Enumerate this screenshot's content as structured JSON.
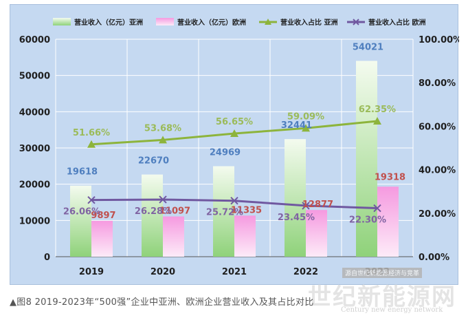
{
  "chart_data": {
    "type": "bar",
    "categories": [
      "2019",
      "2020",
      "2021",
      "2022",
      "2023"
    ],
    "series": [
      {
        "name": "营业收入（亿元）亚洲",
        "kind": "bar",
        "axis": "left",
        "values": [
          19618,
          22670,
          24969,
          32441,
          54021
        ],
        "labels": [
          "19618",
          "22670",
          "24969",
          "32441",
          "54021"
        ],
        "color": "#8fd27a",
        "label_color": "#4f7fbf"
      },
      {
        "name": "营业收入（亿元）欧洲",
        "kind": "bar",
        "axis": "left",
        "values": [
          9897,
          11097,
          11335,
          12877,
          19318
        ],
        "labels": [
          "9897",
          "11097",
          "11335",
          "12877",
          "19318"
        ],
        "color": "#f59ae0",
        "label_color": "#c0504d"
      },
      {
        "name": "营业收入占比 亚洲",
        "kind": "line",
        "axis": "right",
        "values": [
          51.66,
          53.68,
          56.65,
          59.09,
          62.35
        ],
        "labels": [
          "51.66%",
          "53.68%",
          "56.65%",
          "59.09%",
          "62.35%"
        ],
        "color": "#8db43c",
        "label_color": "#9bbb59",
        "marker": "triangle"
      },
      {
        "name": "营业收入占比 欧洲",
        "kind": "line",
        "axis": "right",
        "values": [
          26.06,
          26.28,
          25.72,
          23.45,
          22.3
        ],
        "labels": [
          "26.06%",
          "26.28%",
          "25.72%",
          "23.45%",
          "22.30%"
        ],
        "color": "#7058a0",
        "label_color": "#8064a2",
        "marker": "cross"
      }
    ],
    "ylim": [
      0,
      60000
    ],
    "yticks": [
      "0",
      "10000",
      "20000",
      "30000",
      "40000",
      "50000",
      "60000"
    ],
    "y2lim": [
      0,
      100
    ],
    "y2ticks": [
      "0.00%",
      "20.00%",
      "40.00%",
      "60.00%",
      "80.00%",
      "100.00%"
    ],
    "legend_position": "top",
    "grid": true
  },
  "caption": "▲图8  2019-2023年“500强”企业中亚洲、欧洲企业营业收入及其占比对比",
  "watermark": {
    "main": "世纪新能源网",
    "sub": "Century new energy network",
    "stamp": "源自世纪新能源经济与竞革"
  }
}
